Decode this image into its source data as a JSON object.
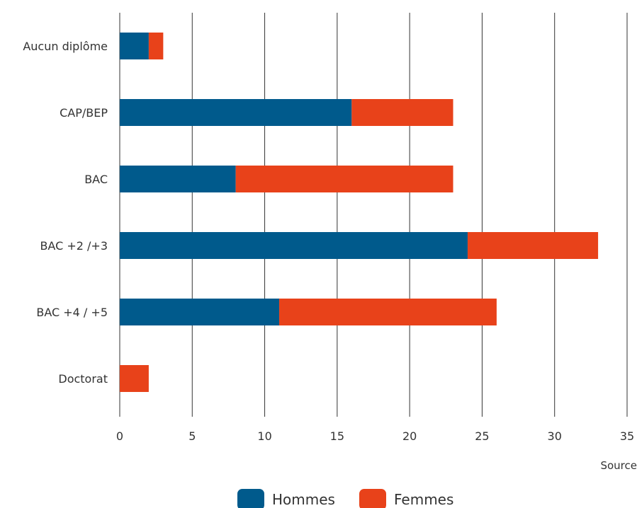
{
  "chart_data": {
    "type": "bar",
    "orientation": "horizontal",
    "stacked": true,
    "categories": [
      "Aucun diplôme",
      "CAP/BEP",
      "BAC",
      "BAC +2 /+3",
      "BAC +4 / +5",
      "Doctorat"
    ],
    "series": [
      {
        "name": "Hommes",
        "values": [
          2,
          16,
          8,
          24,
          11,
          0
        ],
        "color": "#005a8c"
      },
      {
        "name": "Femmes",
        "values": [
          1,
          7,
          15,
          9,
          15,
          2
        ],
        "color": "#e8421a"
      }
    ],
    "xlim": [
      0,
      35
    ],
    "xticks": [
      "0",
      "5",
      "10",
      "15",
      "20",
      "25",
      "30",
      "35"
    ],
    "grid": "vertical",
    "legend_position": "bottom-center"
  },
  "footer": {
    "source_label": "Source"
  }
}
